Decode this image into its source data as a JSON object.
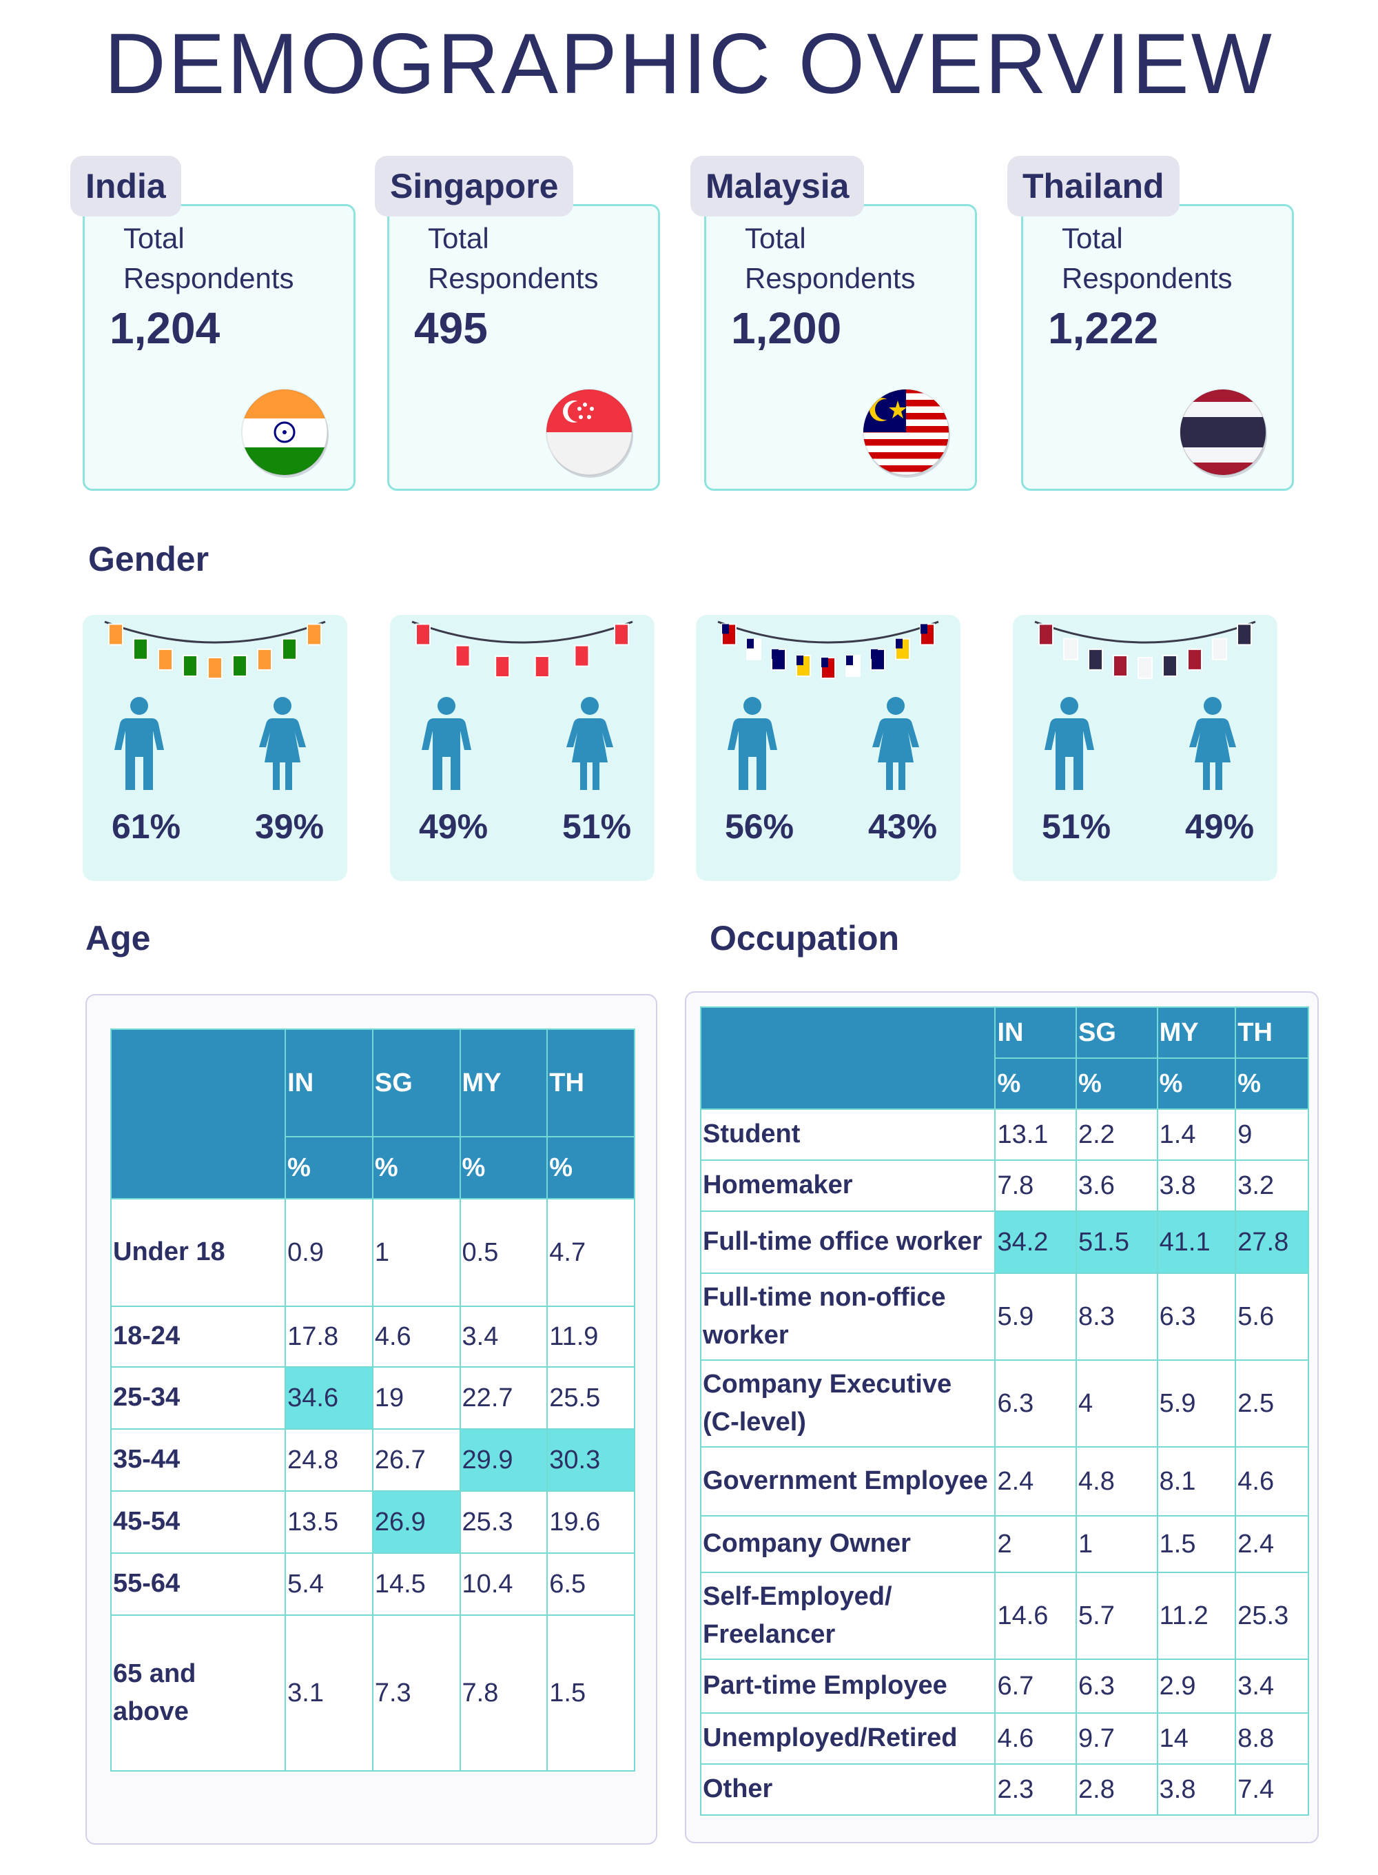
{
  "title": "DEMOGRAPHIC OVERVIEW",
  "respondents_label": "Total\nRespondents",
  "countries": [
    {
      "name": "India",
      "code": "IN",
      "total": "1,204",
      "flag": "india-flag-icon",
      "male_pct": "61%",
      "female_pct": "39%",
      "flag_colors": [
        "#ff9933",
        "#ffffff",
        "#138808"
      ]
    },
    {
      "name": "Singapore",
      "code": "SG",
      "total": "495",
      "flag": "singapore-flag-icon",
      "male_pct": "49%",
      "female_pct": "51%",
      "flag_colors": [
        "#ef3340",
        "#ffffff"
      ]
    },
    {
      "name": "Malaysia",
      "code": "MY",
      "total": "1,200",
      "flag": "malaysia-flag-icon",
      "male_pct": "56%",
      "female_pct": "43%",
      "flag_colors": [
        "#cc0001",
        "#ffffff",
        "#010066",
        "#ffcc00"
      ]
    },
    {
      "name": "Thailand",
      "code": "TH",
      "total": "1,222",
      "flag": "thailand-flag-icon",
      "male_pct": "51%",
      "female_pct": "49%",
      "flag_colors": [
        "#a51931",
        "#f4f5f8",
        "#2d2a4a"
      ]
    }
  ],
  "gender": {
    "heading": "Gender",
    "male_icon": "male-person-icon",
    "female_icon": "female-person-icon",
    "icon_color": "#2e8fbd"
  },
  "age": {
    "heading": "Age",
    "columns": [
      "IN",
      "SG",
      "MY",
      "TH"
    ],
    "unit": "%",
    "rows": [
      {
        "label": "Under 18",
        "values": [
          "0.9",
          "1",
          "0.5",
          "4.7"
        ],
        "highlight": []
      },
      {
        "label": "18-24",
        "values": [
          "17.8",
          "4.6",
          "3.4",
          "11.9"
        ],
        "highlight": []
      },
      {
        "label": "25-34",
        "values": [
          "34.6",
          "19",
          "22.7",
          "25.5"
        ],
        "highlight": [
          0
        ]
      },
      {
        "label": "35-44",
        "values": [
          "24.8",
          "26.7",
          "29.9",
          "30.3"
        ],
        "highlight": [
          2,
          3
        ]
      },
      {
        "label": "45-54",
        "values": [
          "13.5",
          "26.9",
          "25.3",
          "19.6"
        ],
        "highlight": [
          1
        ]
      },
      {
        "label": "55-64",
        "values": [
          "5.4",
          "14.5",
          "10.4",
          "6.5"
        ],
        "highlight": []
      },
      {
        "label": "65 and\nabove",
        "values": [
          "3.1",
          "7.3",
          "7.8",
          "1.5"
        ],
        "highlight": []
      }
    ]
  },
  "occupation": {
    "heading": "Occupation",
    "columns": [
      "IN",
      "SG",
      "MY",
      "TH"
    ],
    "unit": "%",
    "rows": [
      {
        "label": "Student",
        "values": [
          "13.1",
          "2.2",
          "1.4",
          "9"
        ],
        "highlight": []
      },
      {
        "label": "Homemaker",
        "values": [
          "7.8",
          "3.6",
          "3.8",
          "3.2"
        ],
        "highlight": []
      },
      {
        "label": "Full-time office worker",
        "values": [
          "34.2",
          "51.5",
          "41.1",
          "27.8"
        ],
        "highlight": [
          0,
          1,
          2,
          3
        ]
      },
      {
        "label": "Full-time non-office\nworker",
        "values": [
          "5.9",
          "8.3",
          "6.3",
          "5.6"
        ],
        "highlight": []
      },
      {
        "label": "Company Executive\n(C-level)",
        "values": [
          "6.3",
          "4",
          "5.9",
          "2.5"
        ],
        "highlight": []
      },
      {
        "label": "Government Employee",
        "values": [
          "2.4",
          "4.8",
          "8.1",
          "4.6"
        ],
        "highlight": []
      },
      {
        "label": "Company Owner",
        "values": [
          "2",
          "1",
          "1.5",
          "2.4"
        ],
        "highlight": []
      },
      {
        "label": "Self-Employed/\nFreelancer",
        "values": [
          "14.6",
          "5.7",
          "11.2",
          "25.3"
        ],
        "highlight": []
      },
      {
        "label": "Part-time Employee",
        "values": [
          "6.7",
          "6.3",
          "2.9",
          "3.4"
        ],
        "highlight": []
      },
      {
        "label": "Unemployed/Retired",
        "values": [
          "4.6",
          "9.7",
          "14",
          "8.8"
        ],
        "highlight": []
      },
      {
        "label": "Other",
        "values": [
          "2.3",
          "2.8",
          "3.8",
          "7.4"
        ],
        "highlight": []
      }
    ]
  }
}
